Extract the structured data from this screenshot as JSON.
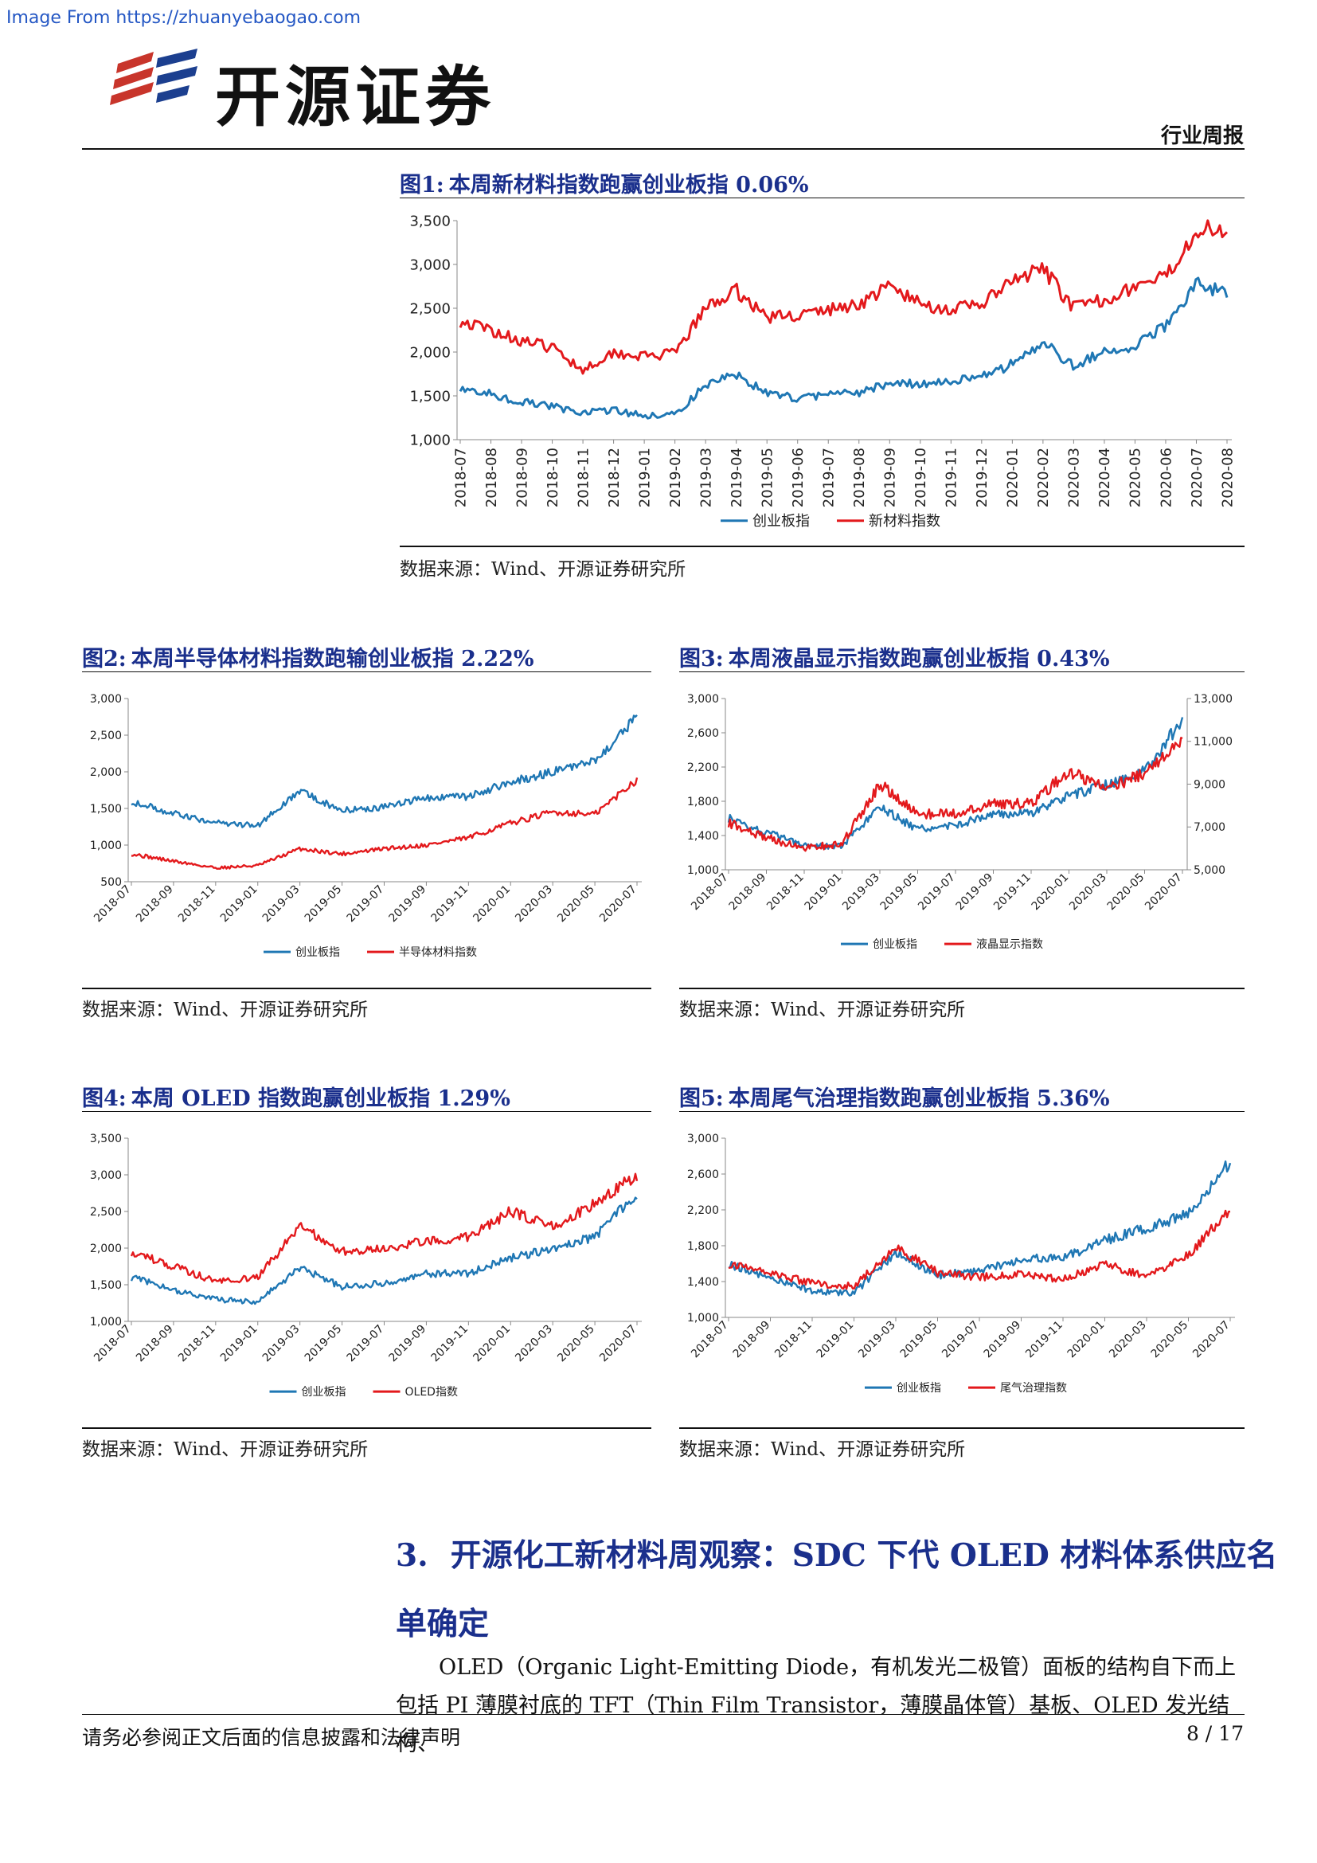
{
  "source_url": "Image From https://zhuanyebaogao.com",
  "brand": {
    "name": "开源证券"
  },
  "header": {
    "report_type": "行业周报"
  },
  "figures": [
    {
      "num": "图1:",
      "title": "本周新材料指数跑赢创业板指 0.06%",
      "source": "数据来源：Wind、开源证券研究所"
    },
    {
      "num": "图2:",
      "title": "本周半导体材料指数跑输创业板指 2.22%",
      "source": "数据来源：Wind、开源证券研究所"
    },
    {
      "num": "图3:",
      "title": "本周液晶显示指数跑赢创业板指 0.43%",
      "source": "数据来源：Wind、开源证券研究所"
    },
    {
      "num": "图4:",
      "title": "本周 OLED 指数跑赢创业板指 1.29%",
      "source": "数据来源：Wind、开源证券研究所"
    },
    {
      "num": "图5:",
      "title": "本周尾气治理指数跑赢创业板指 5.36%",
      "source": "数据来源：Wind、开源证券研究所"
    }
  ],
  "section": {
    "num": "3.",
    "title_line1": "开源化工新材料周观察：SDC 下代 OLED 材料体系供应名",
    "title_line2": "单确定",
    "paragraph": "OLED（Organic Light-Emitting Diode，有机发光二极管）面板的结构自下而上包括 PI 薄膜衬底的 TFT（Thin Film Transistor，薄膜晶体管）基板、OLED 发光结构、"
  },
  "footer": {
    "disclaimer": "请务必参阅正文后面的信息披露和法律声明",
    "page": "8 / 17"
  },
  "colors": {
    "blue_series": "#1f77b4",
    "red_series": "#e3191c",
    "title_blue": "#1a2f8c"
  },
  "chart_data": [
    {
      "type": "line",
      "title": "本周新材料指数跑赢创业板指 0.06%",
      "x": [
        "2018-07",
        "2018-08",
        "2018-09",
        "2018-10",
        "2018-11",
        "2018-12",
        "2019-01",
        "2019-02",
        "2019-03",
        "2019-04",
        "2019-05",
        "2019-06",
        "2019-07",
        "2019-08",
        "2019-09",
        "2019-10",
        "2019-11",
        "2019-12",
        "2020-01",
        "2020-02",
        "2020-03",
        "2020-04",
        "2020-05",
        "2020-06",
        "2020-07",
        "2020-08"
      ],
      "yticks": [
        "1,000",
        "1,500",
        "2,000",
        "2,500",
        "3,000",
        "3,500"
      ],
      "ylim": [
        1000,
        3500
      ],
      "legend_position": "bottom",
      "series": [
        {
          "name": "创业板指",
          "color": "#1f77b4",
          "values": [
            1600,
            1520,
            1430,
            1380,
            1300,
            1340,
            1270,
            1280,
            1620,
            1740,
            1530,
            1470,
            1520,
            1530,
            1650,
            1640,
            1660,
            1720,
            1860,
            2100,
            1850,
            1990,
            2070,
            2300,
            2800,
            2650
          ]
        },
        {
          "name": "新材料指数",
          "color": "#e3191c",
          "values": [
            2350,
            2250,
            2130,
            2050,
            1800,
            2000,
            1950,
            1980,
            2500,
            2700,
            2400,
            2420,
            2480,
            2550,
            2750,
            2550,
            2480,
            2550,
            2800,
            2950,
            2500,
            2600,
            2750,
            2850,
            3400,
            3400
          ]
        }
      ]
    },
    {
      "type": "line",
      "title": "本周半导体材料指数跑输创业板指 2.22%",
      "x": [
        "2018-07",
        "2018-09",
        "2018-11",
        "2019-01",
        "2019-03",
        "2019-05",
        "2019-07",
        "2019-09",
        "2019-11",
        "2020-01",
        "2020-03",
        "2020-05",
        "2020-07"
      ],
      "yticks": [
        "500",
        "1,000",
        "1,500",
        "2,000",
        "2,500",
        "3,000"
      ],
      "ylim": [
        500,
        3000
      ],
      "legend_position": "bottom",
      "series": [
        {
          "name": "创业板指",
          "color": "#1f77b4",
          "values": [
            1600,
            1430,
            1300,
            1270,
            1730,
            1470,
            1520,
            1650,
            1660,
            1860,
            2000,
            2150,
            2750
          ]
        },
        {
          "name": "半导体材料指数",
          "color": "#e3191c",
          "values": [
            880,
            780,
            690,
            720,
            950,
            880,
            950,
            1000,
            1100,
            1300,
            1450,
            1420,
            1900
          ]
        }
      ]
    },
    {
      "type": "line",
      "title": "本周液晶显示指数跑赢创业板指 0.43%",
      "x": [
        "2018-07",
        "2018-09",
        "2018-11",
        "2019-01",
        "2019-03",
        "2019-05",
        "2019-07",
        "2019-09",
        "2019-11",
        "2020-01",
        "2020-03",
        "2020-05",
        "2020-07"
      ],
      "yticks_left": [
        "1,000",
        "1,400",
        "1,800",
        "2,200",
        "2,600",
        "3,000"
      ],
      "ylim_left": [
        1000,
        3000
      ],
      "yticks_right": [
        "5,000",
        "7,000",
        "9,000",
        "11,000",
        "13,000"
      ],
      "ylim_right": [
        5000,
        13000
      ],
      "legend_position": "bottom",
      "series": [
        {
          "name": "创业板指",
          "color": "#1f77b4",
          "axis": "left",
          "values": [
            1600,
            1430,
            1300,
            1270,
            1730,
            1470,
            1520,
            1650,
            1660,
            1860,
            2000,
            2150,
            2750
          ]
        },
        {
          "name": "液晶显示指数",
          "color": "#e3191c",
          "axis": "right",
          "values": [
            7200,
            6500,
            6000,
            6200,
            9000,
            7600,
            7600,
            8100,
            8100,
            9600,
            8800,
            9500,
            11000
          ]
        }
      ]
    },
    {
      "type": "line",
      "title": "本周 OLED 指数跑赢创业板指 1.29%",
      "x": [
        "2018-07",
        "2018-09",
        "2018-11",
        "2019-01",
        "2019-03",
        "2019-05",
        "2019-07",
        "2019-09",
        "2019-11",
        "2020-01",
        "2020-03",
        "2020-05",
        "2020-07"
      ],
      "yticks": [
        "1,000",
        "1,500",
        "2,000",
        "2,500",
        "3,000",
        "3,500"
      ],
      "ylim": [
        1000,
        3500
      ],
      "legend_position": "bottom",
      "series": [
        {
          "name": "创业板指",
          "color": "#1f77b4",
          "values": [
            1600,
            1430,
            1300,
            1270,
            1730,
            1470,
            1520,
            1650,
            1660,
            1860,
            2000,
            2150,
            2750
          ]
        },
        {
          "name": "OLED指数",
          "color": "#e3191c",
          "values": [
            1950,
            1750,
            1550,
            1600,
            2300,
            1950,
            2000,
            2100,
            2150,
            2500,
            2300,
            2600,
            3000
          ]
        }
      ]
    },
    {
      "type": "line",
      "title": "本周尾气治理指数跑赢创业板指 5.36%",
      "x": [
        "2018-07",
        "2018-09",
        "2018-11",
        "2019-01",
        "2019-03",
        "2019-05",
        "2019-07",
        "2019-09",
        "2019-11",
        "2020-01",
        "2020-03",
        "2020-05",
        "2020-07"
      ],
      "yticks": [
        "1,000",
        "1,400",
        "1,800",
        "2,200",
        "2,600",
        "3,000"
      ],
      "ylim": [
        1000,
        3000
      ],
      "legend_position": "bottom",
      "series": [
        {
          "name": "创业板指",
          "color": "#1f77b4",
          "values": [
            1600,
            1430,
            1300,
            1270,
            1730,
            1470,
            1520,
            1650,
            1660,
            1860,
            2000,
            2150,
            2750
          ]
        },
        {
          "name": "尾气治理指数",
          "color": "#e3191c",
          "values": [
            1600,
            1500,
            1380,
            1350,
            1780,
            1500,
            1450,
            1480,
            1420,
            1600,
            1450,
            1700,
            2200
          ]
        }
      ]
    }
  ]
}
